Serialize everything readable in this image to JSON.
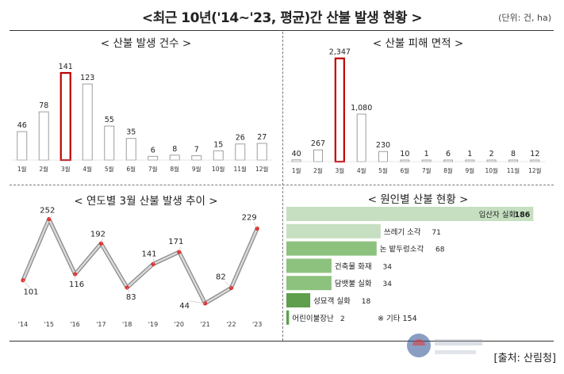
{
  "header": {
    "title": "<최근 10년('14~'23, 평균)간 산불 발생 현황 >",
    "unit": "(단위: 건, ha)"
  },
  "colors": {
    "highlight": "#c00000",
    "bar_gray": "#9e9e9e",
    "line": "#a6a6a6",
    "marker": "#e03030",
    "cause_light": "#c5dfc0",
    "cause_mid": "#8dc27e",
    "cause_dark": "#5e9e4c"
  },
  "chart_data": [
    {
      "type": "bar",
      "title": "< 산불 발생 건수 >",
      "categories": [
        "1월",
        "2월",
        "3월",
        "4월",
        "5월",
        "6월",
        "7월",
        "8월",
        "9월",
        "10월",
        "11월",
        "12월"
      ],
      "values": [
        46,
        78,
        141,
        123,
        55,
        35,
        6,
        8,
        7,
        15,
        26,
        27
      ],
      "value_labels": [
        "46",
        "78",
        "141",
        "123",
        "55",
        "35",
        "6",
        "8",
        "7",
        "15",
        "26",
        "27"
      ],
      "highlight_index": 2,
      "ylim": [
        0,
        150
      ],
      "grid": false
    },
    {
      "type": "bar",
      "title": "< 산불 피해 면적 >",
      "categories": [
        "1월",
        "2월",
        "3월",
        "4월",
        "5월",
        "6월",
        "7월",
        "8월",
        "9월",
        "10월",
        "11월",
        "12월"
      ],
      "values": [
        40,
        267,
        2347,
        1080,
        230,
        10,
        1,
        6,
        1,
        2,
        8,
        12
      ],
      "value_labels": [
        "40",
        "267",
        "2,347",
        "1,080",
        "230",
        "10",
        "1",
        "6",
        "1",
        "2",
        "8",
        "12"
      ],
      "highlight_index": 2,
      "ylim": [
        0,
        2450
      ],
      "grid": false
    },
    {
      "type": "line",
      "title": "< 연도별 3월 산불 발생 추이 >",
      "x": [
        "'14",
        "'15",
        "'16",
        "'17",
        "'18",
        "'19",
        "'20",
        "'21",
        "'22",
        "'23"
      ],
      "values": [
        101,
        252,
        116,
        192,
        83,
        141,
        171,
        44,
        82,
        229
      ],
      "ylim": [
        30,
        265
      ],
      "grid": false
    },
    {
      "type": "bar",
      "orientation": "horizontal",
      "title": "< 원인별 산불 현황 >",
      "categories": [
        "입산자 실화",
        "쓰레기 소각",
        "논 밭두렁소각",
        "건축물 화재",
        "담뱃불 실화",
        "성묘객 실화",
        "어린이불장난"
      ],
      "values": [
        186,
        71,
        68,
        34,
        34,
        18,
        2
      ],
      "note": "※ 기타 154",
      "xlim": [
        0,
        190
      ]
    }
  ],
  "footer": {
    "source": "[출처: 산림청]"
  }
}
